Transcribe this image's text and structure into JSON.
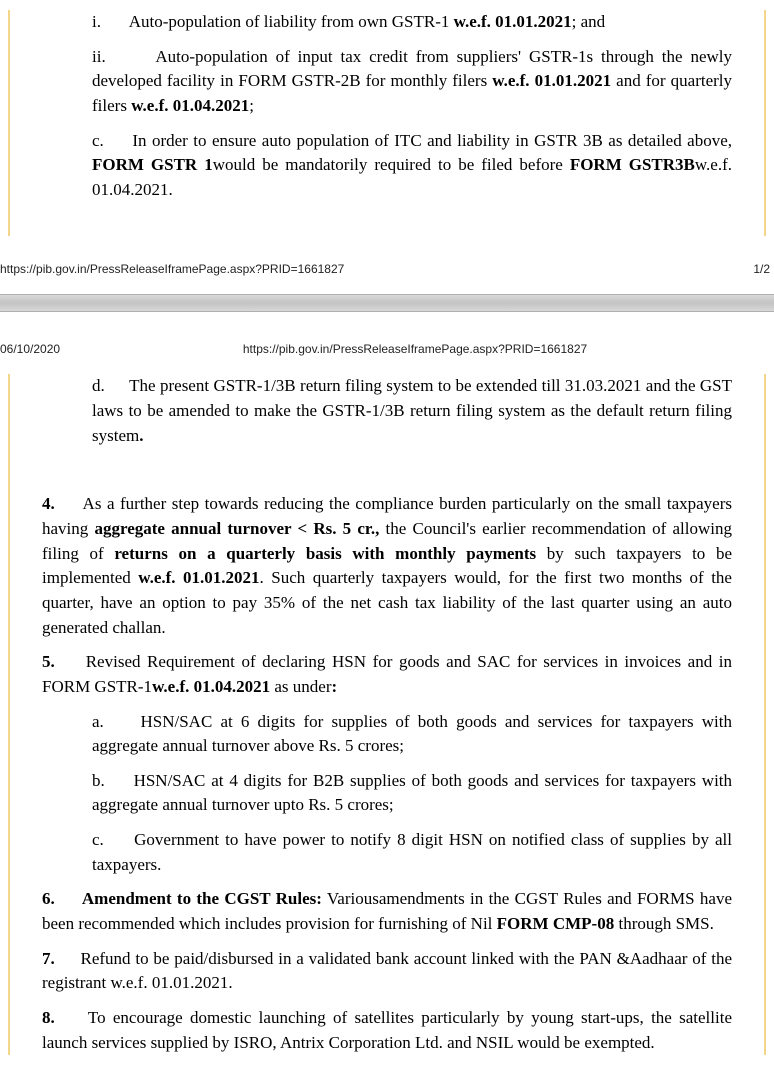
{
  "footer_url": "https://pib.gov.in/PressReleaseIframePage.aspx?PRID=1661827",
  "footer_pagenum": "1/2",
  "header_date": "06/10/2020",
  "header_url": "https://pib.gov.in/PressReleaseIframePage.aspx?PRID=1661827",
  "p1": {
    "i_label": "i.",
    "i_text": "Auto-population of liability from own GSTR-1 ",
    "i_bold": "w.e.f. 01.01.2021",
    "i_tail": "; and",
    "ii_label": "ii.",
    "ii_text1": "Auto-population of input tax credit from suppliers' GSTR-1s through the newly developed facility in FORM GSTR-2B for monthly filers ",
    "ii_bold1": "w.e.f. 01.01.2021",
    "ii_text2": " and for quarterly filers ",
    "ii_bold2": "w.e.f. 01.04.2021",
    "ii_tail": ";",
    "c_label": "c.",
    "c_text1": "In order to ensure auto population of ITC and liability in GSTR 3B as detailed above, ",
    "c_bold1": "FORM GSTR 1",
    "c_text2": "would be mandatorily required to be filed before ",
    "c_bold2": "FORM GSTR3B",
    "c_text3": "w.e.f. 01.04.2021."
  },
  "p2": {
    "d_label": "d.",
    "d_text1": "The present GSTR-1/3B return filing system to be extended till 31.03.2021 and the GST laws to be amended to make the GSTR-1/3B return filing system as the default return filing system",
    "d_bold": "."
  },
  "p3": {
    "num": "4.",
    "text1": "As a further step towards reducing the compliance burden particularly on the small taxpayers having ",
    "bold1": "aggregate annual turnover < Rs. 5 cr.,",
    "text2": " the Council's earlier recommendation of allowing filing of ",
    "bold2": "returns on a quarterly basis with monthly payments",
    "text3": " by such taxpayers to be implemented ",
    "bold3": "w.e.f. 01.01.2021",
    "text4": ". Such quarterly taxpayers would, for the first two months of the quarter, have an option to pay 35% of the net cash tax liability of the last quarter using an auto generated challan."
  },
  "p4": {
    "num": "5.",
    "text1": "Revised Requirement of declaring HSN for goods and SAC for services in invoices and in FORM GSTR-1",
    "bold1": "w.e.f. 01.04.2021",
    "text2": " as under",
    "bold2": ":"
  },
  "p5": {
    "a_label": "a.",
    "a_text": "HSN/SAC at 6 digits for supplies of both goods and services for taxpayers with aggregate annual turnover above Rs. 5 crores;",
    "b_label": "b.",
    "b_text": "HSN/SAC at 4 digits for B2B supplies of both goods and services for taxpayers with aggregate annual turnover upto Rs. 5 crores;",
    "c_label": "c.",
    "c_text": "Government to have power to notify 8 digit HSN on notified class of supplies by all taxpayers."
  },
  "p6": {
    "num": "6.",
    "bold1": "Amendment to the CGST Rules:",
    "text1": " Variousamendments in the CGST Rules and FORMS have been recommended which includes provision for furnishing of Nil ",
    "bold2": "FORM CMP-08",
    "text2": " through SMS."
  },
  "p7": {
    "num": "7.",
    "text": "Refund to be paid/disbursed in a validated bank account linked with the PAN &Aadhaar of the registrant w.e.f. 01.01.2021."
  },
  "p8": {
    "num": "8.",
    "text": "To encourage domestic launching of satellites particularly by young start-ups, the satellite launch services supplied by ISRO, Antrix Corporation Ltd. and NSIL would be exempted."
  }
}
